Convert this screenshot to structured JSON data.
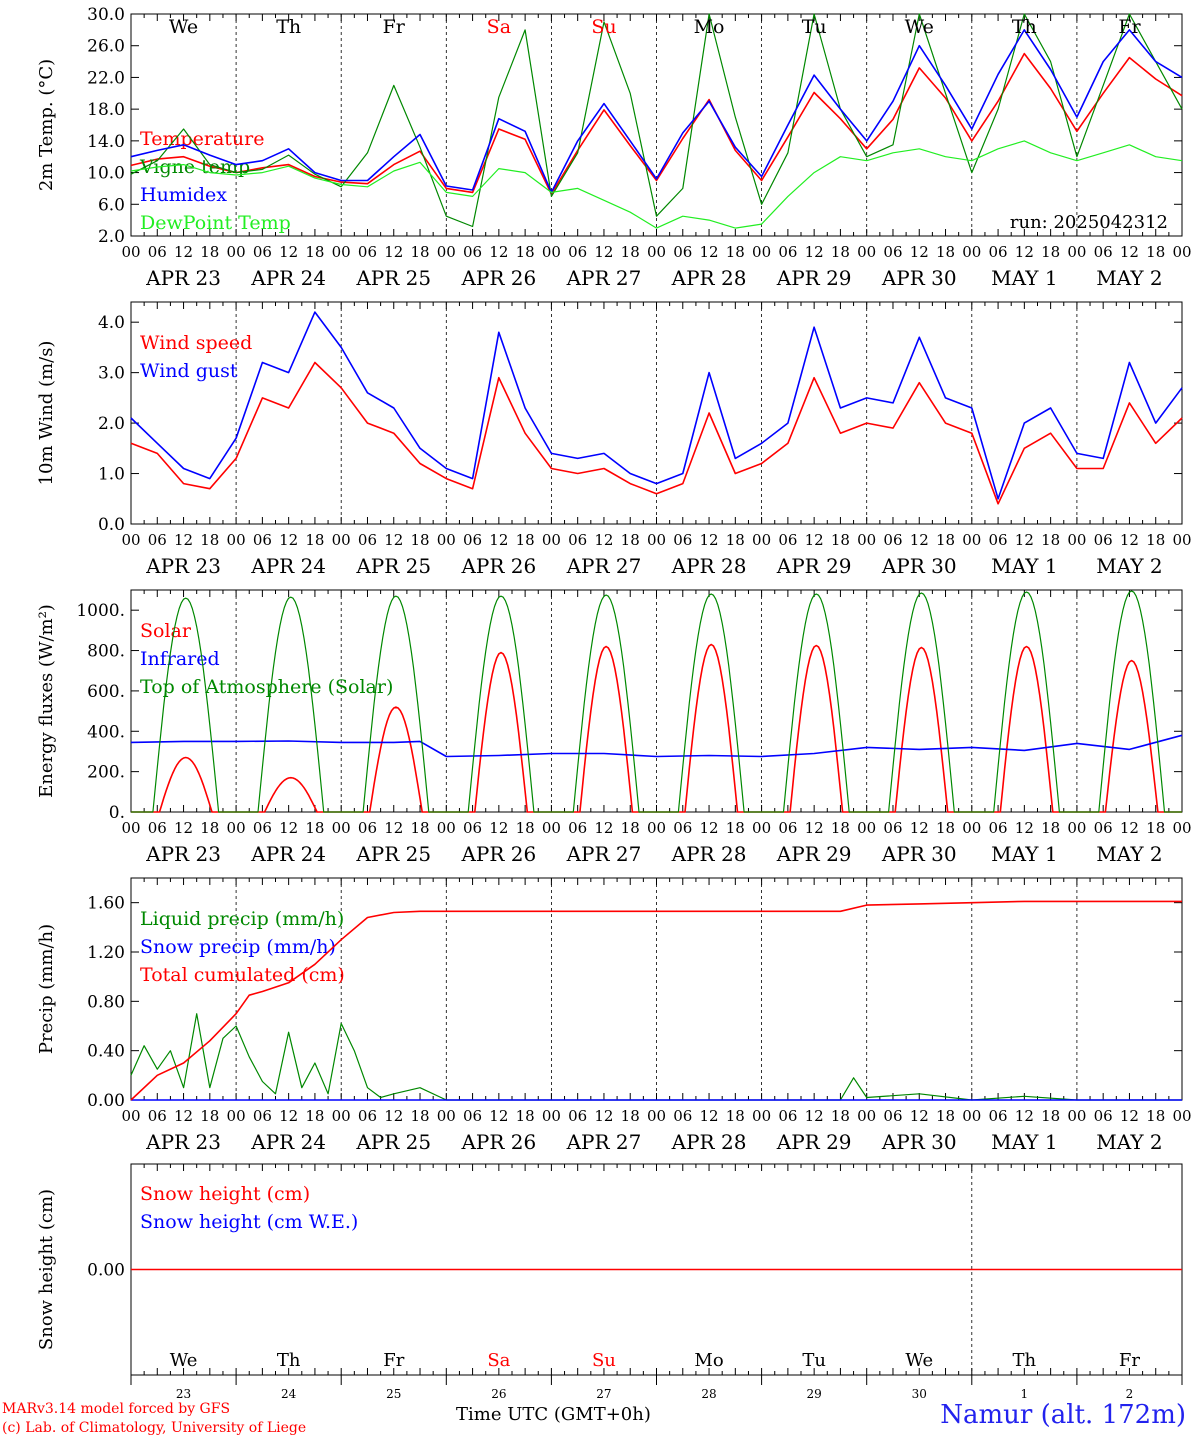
{
  "meta": {
    "run_label": "run: 2025042312",
    "time_axis_label": "Time UTC (GMT+0h)",
    "credit_line1": "MARv3.14 model forced by GFS",
    "credit_line2": "(c) Lab. of Climatology, University of Liege",
    "station": "Namur (alt. 172m)"
  },
  "days": [
    {
      "abbr": "We",
      "date": "APR 23",
      "num": "23",
      "weekend": false
    },
    {
      "abbr": "Th",
      "date": "APR 24",
      "num": "24",
      "weekend": false
    },
    {
      "abbr": "Fr",
      "date": "APR 25",
      "num": "25",
      "weekend": false
    },
    {
      "abbr": "Sa",
      "date": "APR 26",
      "num": "26",
      "weekend": true
    },
    {
      "abbr": "Su",
      "date": "APR 27",
      "num": "27",
      "weekend": true
    },
    {
      "abbr": "Mo",
      "date": "APR 28",
      "num": "28",
      "weekend": false
    },
    {
      "abbr": "Tu",
      "date": "APR 29",
      "num": "29",
      "weekend": false
    },
    {
      "abbr": "We",
      "date": "APR 30",
      "num": "30",
      "weekend": false
    },
    {
      "abbr": "Th",
      "date": "MAY  1",
      "num": "1",
      "weekend": false
    },
    {
      "abbr": "Fr",
      "date": "MAY  2",
      "num": "2",
      "weekend": false
    }
  ],
  "hour_ticks": [
    "00",
    "06",
    "12",
    "18"
  ],
  "colors": {
    "red": "#ff0000",
    "green": "#008800",
    "blue": "#0000ff",
    "lightgreen": "#22ee22",
    "weekend": "#ff0000"
  },
  "chart_data": [
    {
      "type": "line",
      "ylabel": "2m Temp. (°C)",
      "ylim": [
        2,
        30
      ],
      "yticks": [
        "2.0",
        "6.0",
        "10.0",
        "14.0",
        "18.0",
        "22.0",
        "26.0",
        "30.0"
      ],
      "ytick_values": [
        2,
        6,
        10,
        14,
        18,
        22,
        26,
        30
      ],
      "x_unit": "hours since APR 23 00 UTC",
      "xlim": [
        0,
        240
      ],
      "series": [
        {
          "name": "Temperature",
          "color": "red",
          "x": [
            0,
            6,
            12,
            18,
            24,
            30,
            36,
            42,
            48,
            54,
            60,
            66,
            72,
            78,
            84,
            90,
            96,
            102,
            108,
            114,
            120,
            126,
            132,
            138,
            144,
            150,
            156,
            162,
            168,
            174,
            180,
            186,
            192,
            198,
            204,
            210,
            216,
            222,
            228,
            234,
            240
          ],
          "y": [
            10.9,
            11.7,
            12,
            10.8,
            10,
            10.6,
            11,
            9.5,
            8.8,
            8.6,
            11,
            12.7,
            8,
            7.5,
            15.5,
            14.2,
            7.3,
            12.8,
            17.9,
            13.4,
            9,
            14.3,
            19.2,
            12.8,
            9,
            14.5,
            20.1,
            16.8,
            13,
            16.7,
            23.2,
            19.4,
            14,
            19,
            25,
            20.6,
            15.2,
            20,
            24.5,
            21.8,
            19.7
          ]
        },
        {
          "name": "Vigne temp",
          "color": "green",
          "x": [
            0,
            6,
            12,
            18,
            24,
            30,
            36,
            42,
            48,
            54,
            60,
            66,
            72,
            78,
            84,
            90,
            96,
            102,
            108,
            114,
            120,
            126,
            132,
            138,
            144,
            150,
            156,
            162,
            168,
            174,
            180,
            186,
            192,
            198,
            204,
            210,
            216,
            222,
            228,
            234,
            240
          ],
          "y": [
            9.8,
            11.5,
            15.5,
            11,
            10,
            10.4,
            12.2,
            9.8,
            8.2,
            12.5,
            21,
            13.2,
            4.5,
            3.2,
            19.5,
            28,
            7,
            12.5,
            29,
            20,
            4.5,
            8,
            30,
            17,
            6,
            12.5,
            30,
            18,
            12,
            13.5,
            30,
            20,
            10,
            18,
            30,
            24,
            12,
            21,
            30,
            24,
            18
          ]
        },
        {
          "name": "Humidex",
          "color": "blue",
          "x": [
            0,
            6,
            12,
            18,
            24,
            30,
            36,
            42,
            48,
            54,
            60,
            66,
            72,
            78,
            84,
            90,
            96,
            102,
            108,
            114,
            120,
            126,
            132,
            138,
            144,
            150,
            156,
            162,
            168,
            174,
            180,
            186,
            192,
            198,
            204,
            210,
            216,
            222,
            228,
            234,
            240
          ],
          "y": [
            12,
            12.8,
            13.5,
            12.2,
            11,
            11.5,
            13,
            10,
            9,
            9,
            12,
            14.8,
            8.3,
            7.8,
            16.8,
            15.2,
            7.5,
            14,
            18.7,
            14,
            9.2,
            15,
            19,
            13.2,
            9.5,
            16,
            22.3,
            18,
            14,
            19,
            26,
            21,
            15.5,
            22.4,
            28,
            23,
            17,
            24,
            28,
            24,
            22
          ]
        },
        {
          "name": "DewPoint Temp",
          "color": "lightgreen",
          "x": [
            0,
            6,
            12,
            18,
            24,
            30,
            36,
            42,
            48,
            54,
            60,
            66,
            72,
            78,
            84,
            90,
            96,
            102,
            108,
            114,
            120,
            126,
            132,
            138,
            144,
            150,
            156,
            162,
            168,
            174,
            180,
            186,
            192,
            198,
            204,
            210,
            216,
            222,
            228,
            234,
            240
          ],
          "y": [
            10.2,
            10.7,
            11,
            10,
            9.7,
            10,
            10.8,
            9.3,
            8.5,
            8.2,
            10.2,
            11.3,
            7.5,
            7,
            10.5,
            10,
            7.5,
            8,
            6.5,
            5,
            3,
            4.5,
            4,
            3,
            3.5,
            7,
            10,
            12,
            11.5,
            12.5,
            13,
            12,
            11.5,
            13,
            14,
            12.5,
            11.5,
            12.5,
            13.5,
            12,
            11.5
          ]
        }
      ]
    },
    {
      "type": "line",
      "ylabel": "10m Wind (m/s)",
      "ylim": [
        0,
        4.4
      ],
      "yticks": [
        "0.0",
        "1.0",
        "2.0",
        "3.0",
        "4.0"
      ],
      "ytick_values": [
        0,
        1,
        2,
        3,
        4
      ],
      "x_unit": "hours since APR 23 00 UTC",
      "xlim": [
        0,
        240
      ],
      "series": [
        {
          "name": "Wind speed",
          "color": "red",
          "x": [
            0,
            6,
            12,
            18,
            24,
            30,
            36,
            42,
            48,
            54,
            60,
            66,
            72,
            78,
            84,
            90,
            96,
            102,
            108,
            114,
            120,
            126,
            132,
            138,
            144,
            150,
            156,
            162,
            168,
            174,
            180,
            186,
            192,
            198,
            204,
            210,
            216,
            222,
            228,
            234,
            240
          ],
          "y": [
            1.6,
            1.4,
            0.8,
            0.7,
            1.3,
            2.5,
            2.3,
            3.2,
            2.7,
            2,
            1.8,
            1.2,
            0.9,
            0.7,
            2.9,
            1.8,
            1.1,
            1,
            1.1,
            0.8,
            0.6,
            0.8,
            2.2,
            1,
            1.2,
            1.6,
            2.9,
            1.8,
            2,
            1.9,
            2.8,
            2,
            1.8,
            0.4,
            1.5,
            1.8,
            1.1,
            1.1,
            2.4,
            1.6,
            2.1
          ]
        },
        {
          "name": "Wind gust",
          "color": "blue",
          "x": [
            0,
            6,
            12,
            18,
            24,
            30,
            36,
            42,
            48,
            54,
            60,
            66,
            72,
            78,
            84,
            90,
            96,
            102,
            108,
            114,
            120,
            126,
            132,
            138,
            144,
            150,
            156,
            162,
            168,
            174,
            180,
            186,
            192,
            198,
            204,
            210,
            216,
            222,
            228,
            234,
            240
          ],
          "y": [
            2.1,
            1.6,
            1.1,
            0.9,
            1.7,
            3.2,
            3,
            4.2,
            3.5,
            2.6,
            2.3,
            1.5,
            1.1,
            0.9,
            3.8,
            2.3,
            1.4,
            1.3,
            1.4,
            1,
            0.8,
            1,
            3,
            1.3,
            1.6,
            2,
            3.9,
            2.3,
            2.5,
            2.4,
            3.7,
            2.5,
            2.3,
            0.5,
            2,
            2.3,
            1.4,
            1.3,
            3.2,
            2,
            2.7
          ]
        }
      ]
    },
    {
      "type": "line",
      "ylabel": "Energy fluxes (W/m²)",
      "ylim": [
        0,
        1100
      ],
      "yticks": [
        "0.",
        "200.",
        "400.",
        "600.",
        "800.",
        "1000."
      ],
      "ytick_values": [
        0,
        200,
        400,
        600,
        800,
        1000
      ],
      "x_unit": "hours since APR 23 00 UTC",
      "xlim": [
        0,
        240
      ],
      "series": [
        {
          "name": "Solar",
          "color": "red",
          "daily_peaks": [
            270,
            170,
            520,
            790,
            820,
            830,
            825,
            815,
            820,
            750
          ]
        },
        {
          "name": "Infrared",
          "color": "blue",
          "x": [
            0,
            12,
            24,
            36,
            48,
            60,
            66,
            72,
            84,
            96,
            108,
            120,
            132,
            144,
            156,
            168,
            180,
            192,
            204,
            216,
            228,
            240
          ],
          "y": [
            345,
            350,
            350,
            352,
            345,
            345,
            350,
            275,
            280,
            290,
            290,
            275,
            280,
            275,
            290,
            320,
            310,
            320,
            305,
            340,
            310,
            380
          ]
        },
        {
          "name": "Top of Atmosphere (Solar)",
          "color": "green",
          "daily_peaks": [
            1060,
            1065,
            1070,
            1070,
            1075,
            1080,
            1080,
            1085,
            1090,
            1095
          ]
        }
      ]
    },
    {
      "type": "line",
      "ylabel": "Precip (mm/h)",
      "ylim": [
        0,
        1.8
      ],
      "yticks": [
        "0.00",
        "0.40",
        "0.80",
        "1.20",
        "1.60"
      ],
      "ytick_values": [
        0,
        0.4,
        0.8,
        1.2,
        1.6
      ],
      "x_unit": "hours since APR 23 00 UTC",
      "xlim": [
        0,
        240
      ],
      "series": [
        {
          "name": "Liquid precip (mm/h)",
          "color": "green",
          "x": [
            0,
            3,
            6,
            9,
            12,
            15,
            18,
            21,
            24,
            27,
            30,
            33,
            36,
            39,
            42,
            45,
            48,
            51,
            54,
            57,
            60,
            66,
            72,
            84,
            96,
            120,
            144,
            162,
            165,
            168,
            180,
            192,
            204,
            216,
            240
          ],
          "y": [
            0.2,
            0.44,
            0.25,
            0.4,
            0.1,
            0.7,
            0.1,
            0.5,
            0.6,
            0.35,
            0.15,
            0.05,
            0.55,
            0.1,
            0.3,
            0.05,
            0.62,
            0.4,
            0.1,
            0.02,
            0.05,
            0.1,
            0.0,
            0.0,
            0.0,
            0.0,
            0.0,
            0.0,
            0.18,
            0.02,
            0.05,
            0.0,
            0.03,
            0.0,
            0.0
          ]
        },
        {
          "name": "Snow precip (mm/h)",
          "color": "blue",
          "x": [
            0,
            240
          ],
          "y": [
            0.0,
            0.0
          ]
        },
        {
          "name": "Total cumulated (cm)",
          "color": "red",
          "x": [
            0,
            6,
            12,
            18,
            24,
            27,
            30,
            36,
            42,
            48,
            54,
            60,
            66,
            72,
            96,
            120,
            144,
            162,
            168,
            180,
            192,
            204,
            216,
            240
          ],
          "y": [
            0.0,
            0.2,
            0.3,
            0.48,
            0.7,
            0.85,
            0.88,
            0.95,
            1.1,
            1.3,
            1.48,
            1.52,
            1.53,
            1.53,
            1.53,
            1.53,
            1.53,
            1.53,
            1.58,
            1.59,
            1.6,
            1.61,
            1.61,
            1.61
          ]
        }
      ]
    },
    {
      "type": "line",
      "ylabel": "Snow height (cm)",
      "ylim": [
        -1,
        1
      ],
      "yticks": [
        "0.00"
      ],
      "ytick_values": [
        0
      ],
      "x_unit": "hours since APR 23 00 UTC",
      "xlim": [
        0,
        240
      ],
      "series": [
        {
          "name": "Snow height (cm)",
          "color": "red",
          "x": [
            0,
            240
          ],
          "y": [
            0,
            0
          ]
        },
        {
          "name": "Snow height (cm W.E.)",
          "color": "blue",
          "x": [],
          "y": []
        }
      ]
    }
  ]
}
